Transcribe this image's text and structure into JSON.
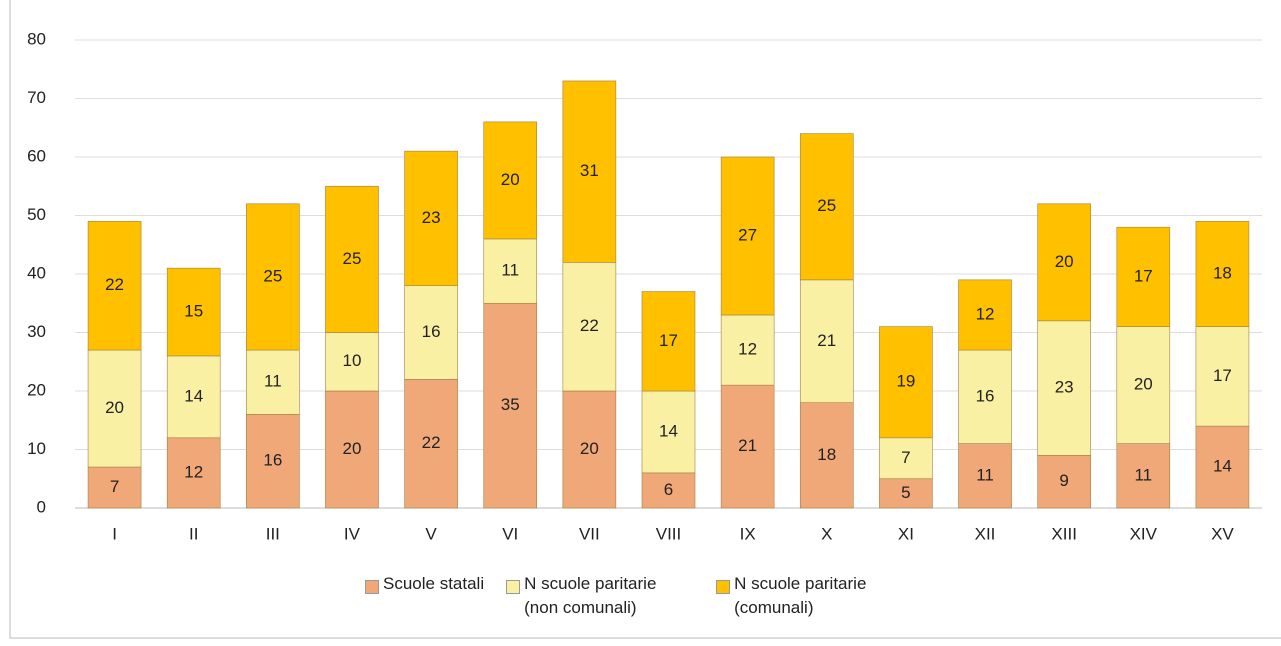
{
  "chart_data": {
    "type": "stacked_bar",
    "categories": [
      "I",
      "II",
      "III",
      "IV",
      "V",
      "VI",
      "VII",
      "VIII",
      "IX",
      "X",
      "XI",
      "XII",
      "XIII",
      "XIV",
      "XV"
    ],
    "series": [
      {
        "name": "Scuole statali",
        "color": "#f0a878",
        "values": [
          7,
          12,
          16,
          20,
          22,
          35,
          20,
          6,
          21,
          18,
          5,
          11,
          9,
          11,
          14
        ]
      },
      {
        "name": "N scuole paritarie (non comunali)",
        "color": "#faf0a4",
        "values": [
          20,
          14,
          11,
          10,
          16,
          11,
          22,
          14,
          12,
          21,
          7,
          16,
          23,
          20,
          17
        ]
      },
      {
        "name": "N scuole paritarie (comunali)",
        "color": "#ffc000",
        "values": [
          22,
          15,
          25,
          25,
          23,
          20,
          31,
          17,
          27,
          25,
          19,
          12,
          20,
          17,
          18
        ]
      }
    ],
    "ylim": [
      0,
      80
    ],
    "yticks": [
      0,
      10,
      20,
      30,
      40,
      50,
      60,
      70,
      80
    ],
    "grid": true,
    "legend": "bottom"
  }
}
